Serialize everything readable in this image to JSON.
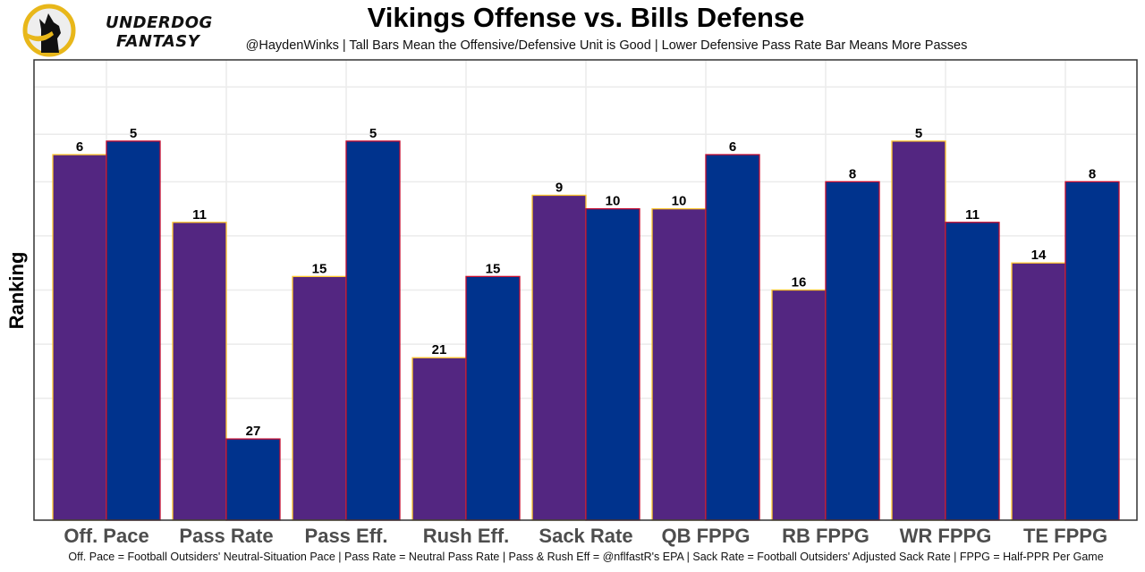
{
  "logo": {
    "line1": "UNDERDOG",
    "line2": "FANTASY",
    "icon": "dog-logo-icon"
  },
  "colors": {
    "offense_fill": "#532681",
    "offense_border": "#FFC62F",
    "defense_fill": "#00338D",
    "defense_border": "#C60C30",
    "grid": "#ebebeb",
    "axis_text": "#4d4d4d"
  },
  "chart_data": {
    "type": "bar",
    "title": "Vikings Offense vs. Bills Defense",
    "subtitle": "@HaydenWinks | Tall Bars Mean the Offensive/Defensive Unit is Good | Lower Defensive Pass Rate Bar Means More Passes",
    "caption": "Off. Pace = Football Outsiders' Neutral-Situation Pace | Pass Rate = Neutral Pass Rate | Pass & Rush Eff = @nflfastR's EPA | Sack Rate = Football Outsiders' Adjusted Sack Rate | FPPG = Half-PPR Per Game",
    "xlabel": "",
    "ylabel": "Ranking",
    "categories": [
      "Off. Pace",
      "Pass Rate",
      "Pass Eff.",
      "Rush Eff.",
      "Sack Rate",
      "QB FPPG",
      "RB FPPG",
      "WR FPPG",
      "TE FPPG"
    ],
    "series": [
      {
        "name": "Vikings Offense",
        "values": [
          6,
          11,
          15,
          21,
          9,
          10,
          16,
          5,
          14
        ]
      },
      {
        "name": "Bills Defense",
        "values": [
          5,
          27,
          5,
          15,
          10,
          6,
          8,
          11,
          8
        ]
      }
    ],
    "bar_height_rule": "height = 33 - rank (ranking 1 is tallest)",
    "ylim": [
      0,
      34
    ],
    "y_tick_labels_shown": false,
    "grid": true,
    "legend": "none"
  }
}
